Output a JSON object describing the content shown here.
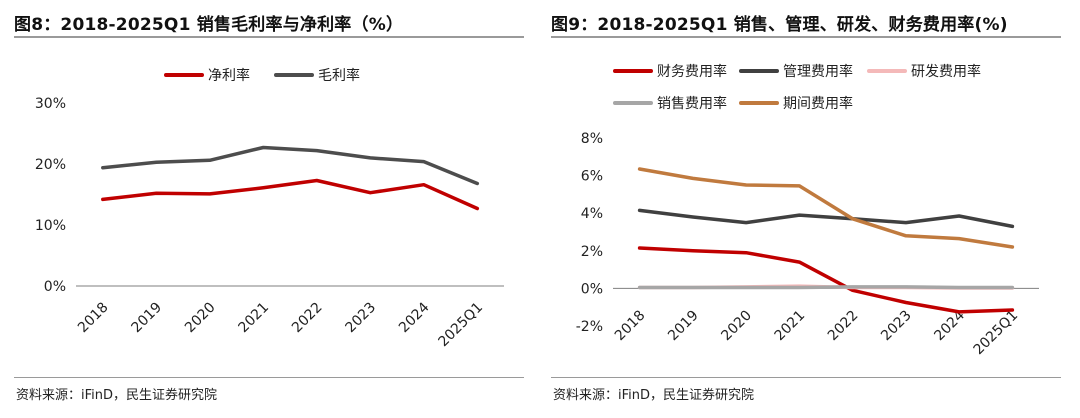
{
  "source": "资料来源：iFinD，民生证券研究院",
  "colors": {
    "net_margin": "#c00000",
    "gross_margin": "#4d4d4d",
    "finance_fee": "#c00000",
    "admin_fee": "#404040",
    "rd_fee": "#f4b9b9",
    "sales_fee": "#a6a6a6",
    "period_fee": "#c07a3e"
  },
  "chart_data": [
    {
      "id": "fig8",
      "title": "图8：2018-2025Q1 销售毛利率与净利率（%）",
      "type": "line",
      "categories": [
        "2018",
        "2019",
        "2020",
        "2021",
        "2022",
        "2023",
        "2024",
        "2025Q1"
      ],
      "ylim": [
        0,
        30
      ],
      "yticks": [
        0,
        10,
        20,
        30
      ],
      "ytick_labels": [
        "0%",
        "10%",
        "20%",
        "30%"
      ],
      "grid": false,
      "legend": "top",
      "series": [
        {
          "name": "净利率",
          "color": "#c00000",
          "values": [
            14.2,
            15.2,
            15.1,
            16.1,
            17.3,
            15.3,
            16.6,
            12.7
          ]
        },
        {
          "name": "毛利率",
          "color": "#4d4d4d",
          "values": [
            19.4,
            20.3,
            20.6,
            22.7,
            22.2,
            21.0,
            20.4,
            16.8
          ]
        }
      ]
    },
    {
      "id": "fig9",
      "title": "图9：2018-2025Q1 销售、管理、研发、财务费用率(%)",
      "type": "line",
      "categories": [
        "2018",
        "2019",
        "2020",
        "2021",
        "2022",
        "2023",
        "2024",
        "2025Q1"
      ],
      "ylim": [
        -2,
        8
      ],
      "yticks": [
        -2,
        0,
        2,
        4,
        6,
        8
      ],
      "ytick_labels": [
        "-2%",
        "0%",
        "2%",
        "4%",
        "6%",
        "8%"
      ],
      "grid": false,
      "legend": "top",
      "series": [
        {
          "name": "财务费用率",
          "color": "#c00000",
          "values": [
            2.15,
            2.0,
            1.9,
            1.4,
            -0.1,
            -0.75,
            -1.25,
            -1.15
          ]
        },
        {
          "name": "管理费用率",
          "color": "#404040",
          "values": [
            4.15,
            3.8,
            3.5,
            3.9,
            3.7,
            3.5,
            3.85,
            3.3
          ]
        },
        {
          "name": "研发费用率",
          "color": "#f4b9b9",
          "values": [
            0.05,
            0.05,
            0.08,
            0.12,
            0.05,
            0.05,
            0.02,
            0.02
          ]
        },
        {
          "name": "销售费用率",
          "color": "#a6a6a6",
          "values": [
            0.05,
            0.05,
            0.05,
            0.05,
            0.08,
            0.08,
            0.05,
            0.05
          ]
        },
        {
          "name": "期间费用率",
          "color": "#c07a3e",
          "values": [
            6.35,
            5.85,
            5.5,
            5.45,
            3.7,
            2.8,
            2.65,
            2.2
          ]
        }
      ]
    }
  ]
}
